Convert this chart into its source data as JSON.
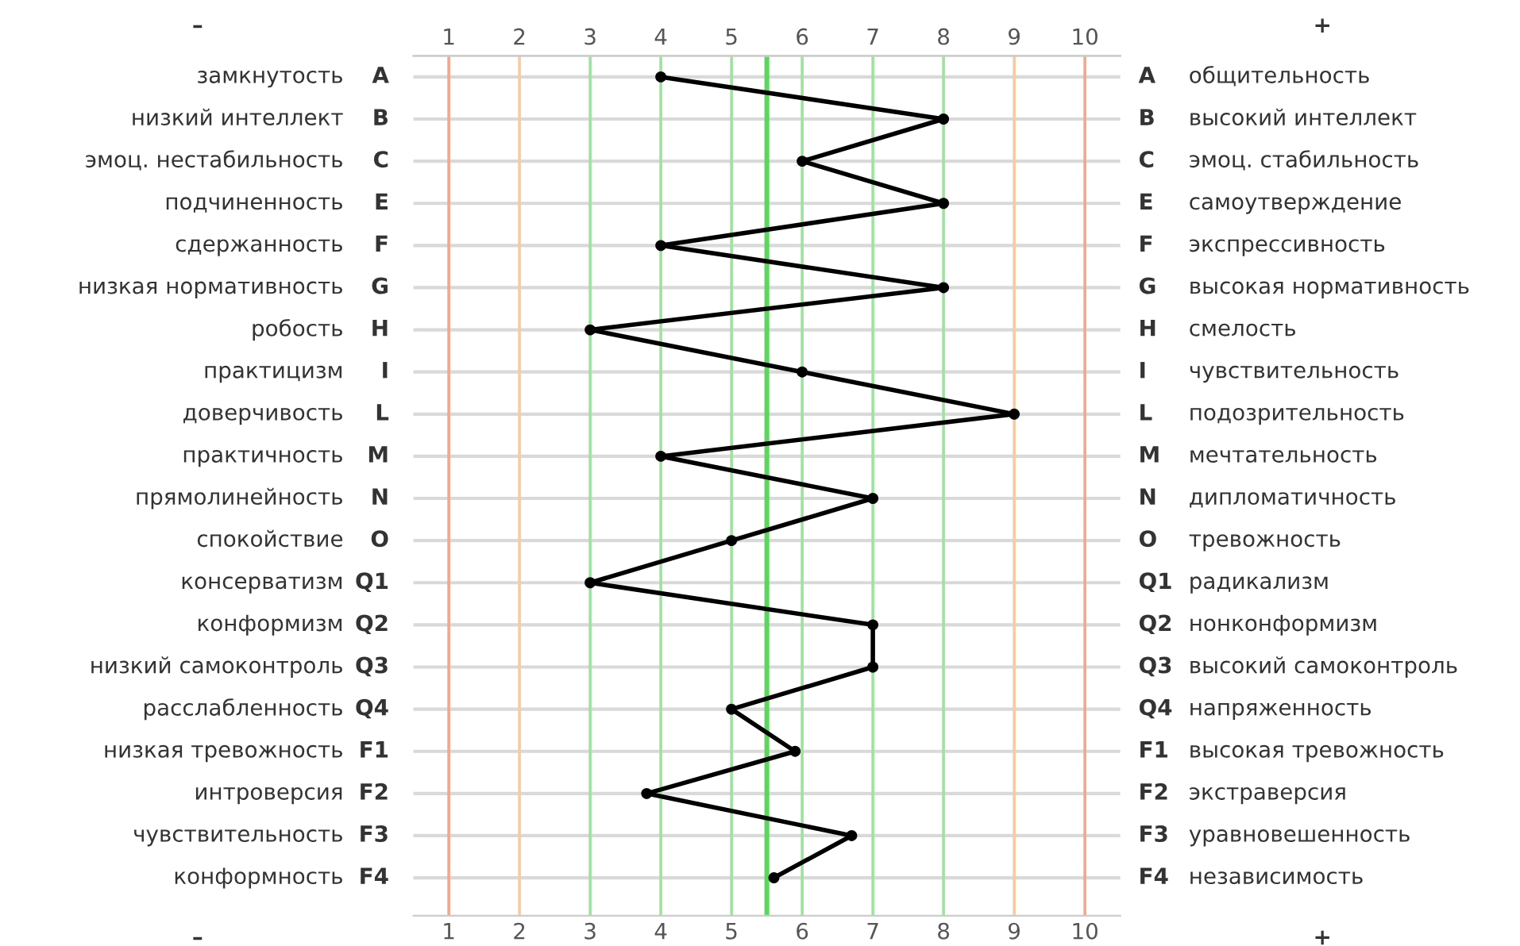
{
  "chart_data": {
    "type": "line",
    "orientation": "horizontal",
    "categories": [
      "замкнутость A",
      "низкий интеллект B",
      "эмоц. нестабильность C",
      "подчиненность E",
      "сдержанность F",
      "низкая нормативность G",
      "робость H",
      "практицизм I",
      "доверчивость L",
      "практичность M",
      "прямолинейность N",
      "спокойствие O",
      "консерватизм Q1",
      "конформизм Q2",
      "низкий самоконтроль Q3",
      "расслабленность Q4",
      "низкая тревожность F1",
      "интроверсия F2",
      "чувствительность F3",
      "конформность F4"
    ],
    "y2_categories": [
      "A общительность",
      "B высокий интеллект",
      "C эмоц. стабильность",
      "E самоутверждение",
      "F экспрессивность",
      "G высокая нормативность",
      "H смелость",
      "I чувствительность",
      "L подозрительность",
      "M мечтательность",
      "N дипломатичность",
      "O тревожность",
      "Q1 радикализм",
      "Q2 нонконформизм",
      "Q3 высокий самоконтроль",
      "Q4 напряженность",
      "F1 высокая тревожность",
      "F2 экстраверсия",
      "F3 уравновешенность",
      "F4 независимость"
    ],
    "series": [
      {
        "color": "#000000",
        "values": [
          4,
          8,
          6,
          8,
          4,
          8,
          3,
          6,
          9,
          4,
          7,
          5,
          3,
          7,
          7,
          5,
          5.9,
          3.8,
          6.7,
          5.6
        ]
      }
    ],
    "marker": "circle",
    "line_style": "solid",
    "grid": "y",
    "xlim": [
      0.5,
      10.5
    ],
    "xticks": [
      1,
      2,
      3,
      4,
      5,
      6,
      7,
      8,
      9,
      10
    ],
    "x2lim": [
      0.5,
      10.5
    ],
    "x2ticks": [
      1,
      2,
      3,
      4,
      5,
      6,
      7,
      8,
      9,
      10
    ],
    "ref_lines": [
      {
        "axis": "x",
        "value": 1,
        "color": "#f4a58a"
      },
      {
        "axis": "x",
        "value": 2,
        "color": "#f9caa0"
      },
      {
        "axis": "x",
        "value": 3,
        "color": "#9de39d"
      },
      {
        "axis": "x",
        "value": 4,
        "color": "#9de39d"
      },
      {
        "axis": "x",
        "value": 5,
        "color": "#9de39d"
      },
      {
        "axis": "x",
        "value": 5.5,
        "color": "#5cd65c"
      },
      {
        "axis": "x",
        "value": 6,
        "color": "#9de39d"
      },
      {
        "axis": "x",
        "value": 7,
        "color": "#9de39d"
      },
      {
        "axis": "x",
        "value": 8,
        "color": "#9de39d"
      },
      {
        "axis": "x",
        "value": 9,
        "color": "#f9caa0"
      },
      {
        "axis": "x",
        "value": 10,
        "color": "#f4a58a"
      }
    ],
    "annotations": [
      "–",
      "+"
    ]
  }
}
